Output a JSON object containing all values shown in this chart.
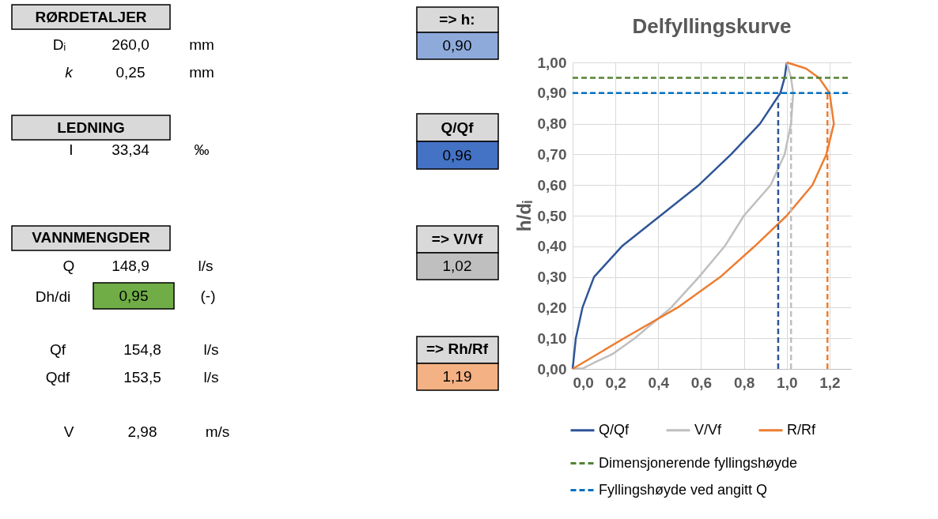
{
  "chart_data": [
    {
      "type": "other",
      "annotations": [
        "RØRDETALJER",
        "Dᵢ",
        "260,0",
        "mm",
        "k",
        "0,25",
        "mm",
        "LEDNING",
        "I",
        "33,34",
        "‰",
        "VANNMENGDER",
        "Q",
        "148,9",
        "l/s",
        "Dh/di",
        "0,95",
        "(-)",
        "Qf",
        "154,8",
        "l/s",
        "Qdf",
        "153,5",
        "l/s",
        "V",
        "2,98",
        "m/s",
        "=> h:",
        "0,90",
        "Q/Qf",
        "0,96",
        "=> V/Vf",
        "1,02",
        "=> Rh/Rf",
        "1,19"
      ],
      "colors": [
        "#d9d9d9",
        null,
        null,
        null,
        null,
        null,
        null,
        "#d9d9d9",
        null,
        null,
        null,
        "#d9d9d9",
        null,
        null,
        null,
        null,
        "#70ad47",
        null,
        null,
        null,
        null,
        null,
        null,
        null,
        null,
        null,
        null,
        "#d9d9d9",
        "#8eaadb",
        "#d9d9d9",
        "#4472c4",
        "#d9d9d9",
        "#bfbfbf",
        "#d9d9d9",
        "#f4b183"
      ]
    },
    {
      "type": "line",
      "title": "Delfyllingskurve",
      "ylabel": "h/dᵢ",
      "xlim": [
        0,
        1.3
      ],
      "ylim": [
        0,
        1
      ],
      "xticks": [
        {
          "value": 0,
          "label": "0,0"
        },
        {
          "value": 0.2,
          "label": "0,2"
        },
        {
          "value": 0.4,
          "label": "0,4"
        },
        {
          "value": 0.6,
          "label": "0,6"
        },
        {
          "value": 0.8,
          "label": "0,8"
        },
        {
          "value": 1,
          "label": "1,0"
        },
        {
          "value": 1.2,
          "label": "1,2"
        }
      ],
      "yticks": [
        {
          "value": 0,
          "label": "0,00"
        },
        {
          "value": 0.1,
          "label": "0,10"
        },
        {
          "value": 0.2,
          "label": "0,20"
        },
        {
          "value": 0.3,
          "label": "0,30"
        },
        {
          "value": 0.4,
          "label": "0,40"
        },
        {
          "value": 0.5,
          "label": "0,50"
        },
        {
          "value": 0.6,
          "label": "0,60"
        },
        {
          "value": 0.7,
          "label": "0,70"
        },
        {
          "value": 0.8,
          "label": "0,80"
        },
        {
          "value": 0.9,
          "label": "0,90"
        },
        {
          "value": 1,
          "label": "1,00"
        }
      ],
      "grid": true,
      "legend": "bottom",
      "marker": "none",
      "line_style": "solid",
      "series": [
        {
          "name": "Q/Qf",
          "color": "#2f5597",
          "x": [
            0,
            0.015,
            0.046,
            0.1,
            0.23,
            0.41,
            0.59,
            0.74,
            0.875,
            0.97,
            0.99,
            1.0
          ],
          "values": [
            0,
            0.1,
            0.2,
            0.3,
            0.4,
            0.5,
            0.6,
            0.7,
            0.8,
            0.9,
            0.95,
            1.0
          ]
        },
        {
          "name": "V/Vf",
          "color": "#bfbfbf",
          "x": [
            0,
            0.05,
            0.1,
            0.19,
            0.29,
            0.46,
            0.59,
            0.71,
            0.8,
            0.925,
            0.99,
            1.02,
            1.03,
            1.02,
            1.0
          ],
          "values": [
            0,
            0.002,
            0.02,
            0.05,
            0.1,
            0.2,
            0.3,
            0.4,
            0.5,
            0.6,
            0.7,
            0.8,
            0.9,
            0.95,
            1.0
          ]
        },
        {
          "name": "R/Rf",
          "color": "#ed7d31",
          "x": [
            0,
            0.24,
            0.49,
            0.69,
            0.85,
            1.0,
            1.12,
            1.185,
            1.22,
            1.2,
            1.15,
            1.09,
            1.0
          ],
          "values": [
            0,
            0.1,
            0.2,
            0.3,
            0.4,
            0.5,
            0.6,
            0.7,
            0.8,
            0.9,
            0.95,
            0.98,
            1.0
          ]
        },
        {
          "name": "Dimensjonerende fyllingshøyde",
          "color": "#548235",
          "line_style": "dashed",
          "x": [
            0,
            1.3
          ],
          "values": [
            0.95,
            0.95
          ]
        },
        {
          "name": "Fyllingshøyde ved angitt Q",
          "color": "#0070c0",
          "line_style": "dashed",
          "x": [
            0,
            1.3
          ],
          "values": [
            0.9,
            0.9
          ]
        },
        {
          "color": "#2f5597",
          "line_style": "dashed",
          "x": [
            0.96,
            0.96
          ],
          "values": [
            0,
            0.88
          ]
        },
        {
          "color": "#bfbfbf",
          "line_style": "dashed",
          "x": [
            1.02,
            1.02
          ],
          "values": [
            0,
            0.88
          ]
        },
        {
          "color": "#ed7d31",
          "line_style": "dashed",
          "x": [
            1.19,
            1.19
          ],
          "values": [
            0,
            0.9
          ]
        }
      ]
    }
  ]
}
